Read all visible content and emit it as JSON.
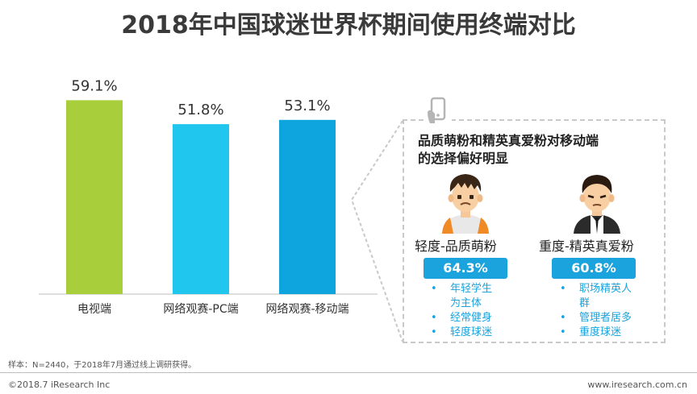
{
  "title": "2018年中国球迷世界杯期间使用终端对比",
  "chart_data": {
    "type": "bar",
    "categories": [
      "电视端",
      "网络观赛-PC端",
      "网络观赛-移动端"
    ],
    "values": [
      59.1,
      51.8,
      53.1
    ],
    "value_labels": [
      "59.1%",
      "51.8%",
      "53.1%"
    ],
    "colors": [
      "#a8cf3b",
      "#21c6ef",
      "#0ea5df"
    ],
    "ylim": [
      0,
      70
    ],
    "grid": false,
    "legend": "none"
  },
  "callout": {
    "headline_line1": "品质萌粉和精英真爱粉对移动端",
    "headline_line2": "的选择偏好明显",
    "icon": "phone-hand-icon",
    "groups": [
      {
        "label": "轻度-品质萌粉",
        "percent": "64.3%",
        "pill_color": "#1aa3dd",
        "bullets": [
          "年轻学生",
          "为主体",
          "经常健身",
          "轻度球迷"
        ]
      },
      {
        "label": "重度-精英真爱粉",
        "percent": "60.8%",
        "pill_color": "#1aa3dd",
        "bullets": [
          "职场精英人",
          "群",
          "管理者居多",
          "重度球迷"
        ]
      }
    ]
  },
  "footnote": "样本：N=2440，于2018年7月通过线上调研获得。",
  "copyright": "©2018.7 iResearch Inc",
  "website": "www.iresearch.com.cn"
}
